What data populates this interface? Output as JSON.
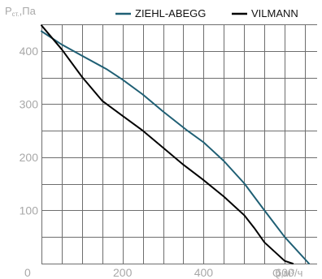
{
  "chart_data": {
    "type": "line",
    "ylabel": {
      "main": "P",
      "sub": "ст.",
      "unit": ",Па"
    },
    "xlabel": "Q,м³/ч",
    "xlim": [
      0,
      680
    ],
    "ylim": [
      0,
      450
    ],
    "x_ticks": [
      0,
      200,
      400,
      600
    ],
    "x_tick_labels": [
      "0",
      "200",
      "400",
      "600"
    ],
    "y_ticks": [
      100,
      200,
      300,
      400
    ],
    "y_tick_labels": [
      "100",
      "200",
      "300",
      "400"
    ],
    "grid": true,
    "legend_position": "top",
    "series": [
      {
        "name": "ZIEHL-ABEGG",
        "color": "#1f5f74",
        "points": [
          [
            0,
            437
          ],
          [
            50,
            412
          ],
          [
            100,
            391
          ],
          [
            160,
            366
          ],
          [
            200,
            346
          ],
          [
            250,
            318
          ],
          [
            300,
            286
          ],
          [
            360,
            250
          ],
          [
            400,
            228
          ],
          [
            450,
            193
          ],
          [
            500,
            151
          ],
          [
            550,
            100
          ],
          [
            600,
            50
          ],
          [
            660,
            0
          ]
        ]
      },
      {
        "name": "VILMANN",
        "color": "#000000",
        "points": [
          [
            0,
            448
          ],
          [
            50,
            403
          ],
          [
            100,
            351
          ],
          [
            150,
            306
          ],
          [
            200,
            278
          ],
          [
            250,
            250
          ],
          [
            300,
            218
          ],
          [
            350,
            186
          ],
          [
            400,
            157
          ],
          [
            450,
            126
          ],
          [
            500,
            91
          ],
          [
            525,
            67
          ],
          [
            550,
            40
          ],
          [
            600,
            5
          ],
          [
            620,
            0
          ]
        ]
      }
    ]
  }
}
